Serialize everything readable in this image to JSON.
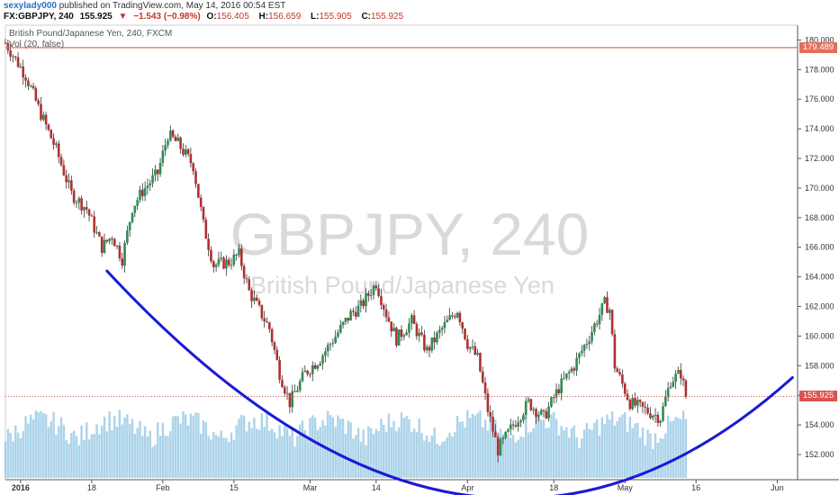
{
  "header": {
    "user": "sexylady000",
    "published_text": "published on TradingView.com, May 14, 2016 00:54 EST",
    "symbol": "FX:GBPJPY, 240",
    "last": "155.925",
    "arrow": "▼",
    "change": "−1.543 (−0.98%)",
    "ohlc": [
      {
        "k": "O:",
        "v": "156.405"
      },
      {
        "k": "H:",
        "v": "156.659"
      },
      {
        "k": "L:",
        "v": "155.905"
      },
      {
        "k": "C:",
        "v": "155.925"
      }
    ]
  },
  "legend": {
    "series_title": "British Pound/Japanese Yen, 240, FXCM",
    "volume_title": "Vol (20, false)"
  },
  "watermark": {
    "line1": "GBPJPY, 240",
    "line2": "British Pound/Japanese Yen"
  },
  "colors": {
    "up": "#2e8b57",
    "down": "#b03030",
    "volume": "#9ccbe6",
    "curve": "#1a1ad6",
    "resistance": "#e36f5a",
    "last_price_line": "#d9534f"
  },
  "chart_data": {
    "type": "candlestick",
    "title": "British Pound/Japanese Yen, 240, FXCM",
    "x_tick_labels": [
      "2016",
      "18",
      "Feb",
      "15",
      "Mar",
      "14",
      "Apr",
      "18",
      "May",
      "16",
      "Jun"
    ],
    "y_tick_labels": [
      "152.000",
      "154.000",
      "156.000",
      "158.000",
      "160.000",
      "162.000",
      "164.000",
      "166.000",
      "168.000",
      "170.000",
      "172.000",
      "174.000",
      "176.000",
      "178.000",
      "180.000"
    ],
    "ylim": [
      150.3,
      181.0
    ],
    "x_dates": [
      "2016-01-04",
      "2016-01-18",
      "2016-02-01",
      "2016-02-15",
      "2016-03-01",
      "2016-03-14",
      "2016-04-01",
      "2016-04-18",
      "2016-05-02",
      "2016-05-16",
      "2016-06-01"
    ],
    "close_path": [
      {
        "date": "2016-01-01",
        "price": 179.8
      },
      {
        "date": "2016-01-05",
        "price": 177.6
      },
      {
        "date": "2016-01-08",
        "price": 175.0
      },
      {
        "date": "2016-01-11",
        "price": 172.6
      },
      {
        "date": "2016-01-14",
        "price": 169.6
      },
      {
        "date": "2016-01-17",
        "price": 168.6
      },
      {
        "date": "2016-01-20",
        "price": 166.0
      },
      {
        "date": "2016-01-22",
        "price": 166.8
      },
      {
        "date": "2016-01-24",
        "price": 165.2
      },
      {
        "date": "2016-01-26",
        "price": 168.7
      },
      {
        "date": "2016-01-28",
        "price": 169.8
      },
      {
        "date": "2016-01-31",
        "price": 171.0
      },
      {
        "date": "2016-02-02",
        "price": 173.6
      },
      {
        "date": "2016-02-04",
        "price": 173.0
      },
      {
        "date": "2016-02-07",
        "price": 171.5
      },
      {
        "date": "2016-02-09",
        "price": 167.5
      },
      {
        "date": "2016-02-11",
        "price": 164.8
      },
      {
        "date": "2016-02-14",
        "price": 165.0
      },
      {
        "date": "2016-02-16",
        "price": 165.5
      },
      {
        "date": "2016-02-18",
        "price": 163.0
      },
      {
        "date": "2016-02-22",
        "price": 160.5
      },
      {
        "date": "2016-02-24",
        "price": 157.5
      },
      {
        "date": "2016-02-26",
        "price": 155.5
      },
      {
        "date": "2016-02-29",
        "price": 157.5
      },
      {
        "date": "2016-03-03",
        "price": 158.5
      },
      {
        "date": "2016-03-06",
        "price": 160.0
      },
      {
        "date": "2016-03-09",
        "price": 161.5
      },
      {
        "date": "2016-03-11",
        "price": 162.0
      },
      {
        "date": "2016-03-14",
        "price": 163.6
      },
      {
        "date": "2016-03-16",
        "price": 161.5
      },
      {
        "date": "2016-03-18",
        "price": 159.8
      },
      {
        "date": "2016-03-21",
        "price": 161.0
      },
      {
        "date": "2016-03-24",
        "price": 159.0
      },
      {
        "date": "2016-03-27",
        "price": 160.5
      },
      {
        "date": "2016-03-30",
        "price": 161.8
      },
      {
        "date": "2016-04-01",
        "price": 159.5
      },
      {
        "date": "2016-04-03",
        "price": 158.5
      },
      {
        "date": "2016-04-05",
        "price": 155.0
      },
      {
        "date": "2016-04-07",
        "price": 152.3
      },
      {
        "date": "2016-04-10",
        "price": 154.0
      },
      {
        "date": "2016-04-13",
        "price": 155.5
      },
      {
        "date": "2016-04-16",
        "price": 154.5
      },
      {
        "date": "2016-04-19",
        "price": 156.5
      },
      {
        "date": "2016-04-22",
        "price": 158.0
      },
      {
        "date": "2016-04-25",
        "price": 160.0
      },
      {
        "date": "2016-04-28",
        "price": 162.2
      },
      {
        "date": "2016-04-29",
        "price": 161.8
      },
      {
        "date": "2016-04-30",
        "price": 158.0
      },
      {
        "date": "2016-05-03",
        "price": 155.5
      },
      {
        "date": "2016-05-06",
        "price": 155.0
      },
      {
        "date": "2016-05-09",
        "price": 154.5
      },
      {
        "date": "2016-05-11",
        "price": 157.0
      },
      {
        "date": "2016-05-13",
        "price": 157.5
      },
      {
        "date": "2016-05-14",
        "price": 155.925
      }
    ],
    "resistance_price": 179.489,
    "last_price": 155.925
  }
}
